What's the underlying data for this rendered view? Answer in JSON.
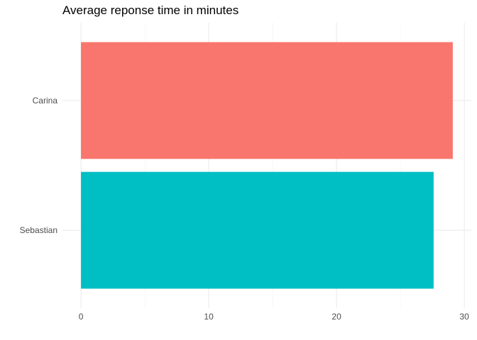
{
  "chart_data": {
    "type": "bar",
    "orientation": "horizontal",
    "title": "Average reponse time in minutes",
    "xlabel": "",
    "ylabel": "",
    "categories": [
      "Carina",
      "Sebastian"
    ],
    "values": [
      29.1,
      27.6
    ],
    "colors": [
      "#F8766D",
      "#00BFC4"
    ],
    "xlim": [
      -1.45,
      30.55
    ],
    "xticks": [
      0,
      10,
      20,
      30
    ],
    "xtick_labels": [
      "0",
      "10",
      "20",
      "30"
    ],
    "grid": true,
    "legend": "none",
    "theme": "minimal"
  }
}
